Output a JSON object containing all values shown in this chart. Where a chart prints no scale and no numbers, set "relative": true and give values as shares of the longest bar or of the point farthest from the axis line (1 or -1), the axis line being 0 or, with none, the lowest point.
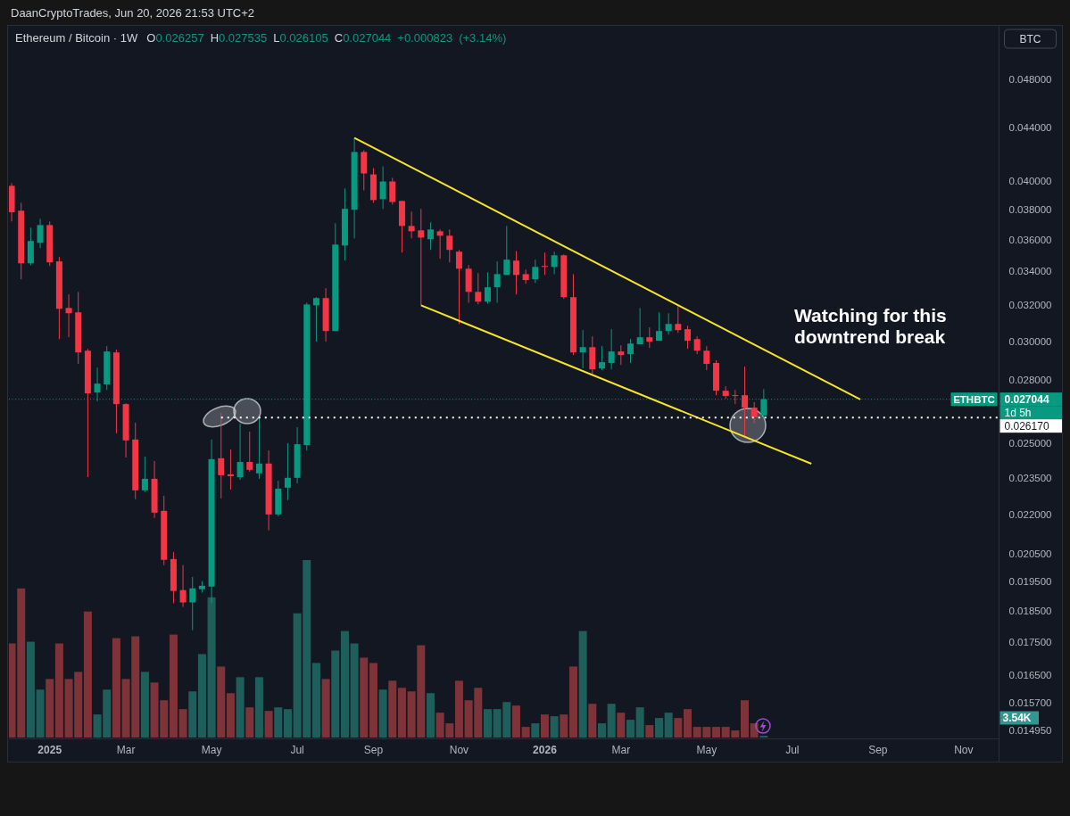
{
  "chart_data": [
    {
      "type": "candlestick",
      "title": "Ethereum / Bitcoin · 1W",
      "subtitle": "O0.026257 H0.027535 L0.026105 C0.027044 +0.000823 (+3.14%)",
      "ylabel": "BTC",
      "log": true,
      "xlim": [
        "2024-12-07",
        "2026-12-05"
      ],
      "xticks": [
        {
          "value": "2025-01-06",
          "label": "2025"
        },
        {
          "value": "2025-03-03",
          "label": "Mar"
        },
        {
          "value": "2025-05-05",
          "label": "May"
        },
        {
          "value": "2025-07-07",
          "label": "Jul"
        },
        {
          "value": "2025-09-01",
          "label": "Sep"
        },
        {
          "value": "2025-11-03",
          "label": "Nov"
        },
        {
          "value": "2026-01-05",
          "label": "2026"
        },
        {
          "value": "2026-03-02",
          "label": "Mar"
        },
        {
          "value": "2026-05-04",
          "label": "May"
        },
        {
          "value": "2026-07-06",
          "label": "Jul"
        },
        {
          "value": "2026-09-07",
          "label": "Sep"
        },
        {
          "value": "2026-11-09",
          "label": "Nov"
        }
      ],
      "ylim": [
        0.01475,
        0.0528
      ],
      "yticks": [
        {
          "value": 0.048,
          "label": "0.048000"
        },
        {
          "value": 0.044,
          "label": "0.044000"
        },
        {
          "value": 0.04,
          "label": "0.040000"
        },
        {
          "value": 0.038,
          "label": "0.038000"
        },
        {
          "value": 0.036,
          "label": "0.036000"
        },
        {
          "value": 0.034,
          "label": "0.034000"
        },
        {
          "value": 0.032,
          "label": "0.032000"
        },
        {
          "value": 0.03,
          "label": "0.030000"
        },
        {
          "value": 0.028,
          "label": "0.028000"
        },
        {
          "value": 0.025,
          "label": "0.025000"
        },
        {
          "value": 0.0235,
          "label": "0.023500"
        },
        {
          "value": 0.022,
          "label": "0.022000"
        },
        {
          "value": 0.0205,
          "label": "0.020500"
        },
        {
          "value": 0.0195,
          "label": "0.019500"
        },
        {
          "value": 0.0185,
          "label": "0.018500"
        },
        {
          "value": 0.0175,
          "label": "0.017500"
        },
        {
          "value": 0.0165,
          "label": "0.016500"
        },
        {
          "value": 0.0157,
          "label": "0.015700"
        },
        {
          "value": 0.01495,
          "label": "0.014950"
        }
      ],
      "series": [
        {
          "name": "ETHBTC",
          "type": "candlestick",
          "x": [
            "2024-12-09",
            "2024-12-16",
            "2024-12-23",
            "2024-12-30",
            "2025-01-06",
            "2025-01-13",
            "2025-01-20",
            "2025-01-27",
            "2025-02-03",
            "2025-02-10",
            "2025-02-17",
            "2025-02-24",
            "2025-03-03",
            "2025-03-10",
            "2025-03-17",
            "2025-03-24",
            "2025-03-31",
            "2025-04-07",
            "2025-04-14",
            "2025-04-21",
            "2025-04-28",
            "2025-05-05",
            "2025-05-12",
            "2025-05-19",
            "2025-05-26",
            "2025-06-02",
            "2025-06-09",
            "2025-06-16",
            "2025-06-23",
            "2025-06-30",
            "2025-07-07",
            "2025-07-14",
            "2025-07-21",
            "2025-07-28",
            "2025-08-04",
            "2025-08-11",
            "2025-08-18",
            "2025-08-25",
            "2025-09-01",
            "2025-09-08",
            "2025-09-15",
            "2025-09-22",
            "2025-09-29",
            "2025-10-06",
            "2025-10-13",
            "2025-10-20",
            "2025-10-27",
            "2025-11-03",
            "2025-11-10",
            "2025-11-17",
            "2025-11-24",
            "2025-12-01",
            "2025-12-08",
            "2025-12-15",
            "2025-12-22",
            "2025-12-29",
            "2026-01-05",
            "2026-01-12",
            "2026-01-19",
            "2026-01-26",
            "2026-02-02",
            "2026-02-09",
            "2026-02-16",
            "2026-02-23",
            "2026-03-02",
            "2026-03-09",
            "2026-03-16",
            "2026-03-23",
            "2026-03-30",
            "2026-04-06",
            "2026-04-13",
            "2026-04-20",
            "2026-04-27",
            "2026-05-04",
            "2026-05-11",
            "2026-05-18",
            "2026-05-25",
            "2026-06-01",
            "2026-06-08",
            "2026-06-15"
          ],
          "ohlc": [
            [
              0.03964,
              0.03983,
              0.03719,
              0.03781
            ],
            [
              0.03791,
              0.03845,
              0.03353,
              0.0345
            ],
            [
              0.0345,
              0.03678,
              0.03439,
              0.03591
            ],
            [
              0.03579,
              0.03737,
              0.03545,
              0.03695
            ],
            [
              0.03695,
              0.03719,
              0.03434,
              0.03456
            ],
            [
              0.03462,
              0.03489,
              0.03012,
              0.0318
            ],
            [
              0.03185,
              0.03263,
              0.03022,
              0.03155
            ],
            [
              0.0316,
              0.03278,
              0.02881,
              0.02941
            ],
            [
              0.0295,
              0.0296,
              0.02352,
              0.02733
            ],
            [
              0.02737,
              0.02862,
              0.02694,
              0.02781
            ],
            [
              0.02777,
              0.02974,
              0.0275,
              0.02946
            ],
            [
              0.02941,
              0.02955,
              0.02544,
              0.02681
            ],
            [
              0.02681,
              0.02685,
              0.02436,
              0.02512
            ],
            [
              0.02516,
              0.02593,
              0.02261,
              0.02297
            ],
            [
              0.02297,
              0.0244,
              0.0229,
              0.02345
            ],
            [
              0.02345,
              0.02421,
              0.02186,
              0.02207
            ],
            [
              0.02214,
              0.02275,
              0.02009,
              0.02028
            ],
            [
              0.02031,
              0.02057,
              0.01876,
              0.01918
            ],
            [
              0.01921,
              0.02009,
              0.01864,
              0.01879
            ],
            [
              0.01879,
              0.01967,
              0.01788,
              0.01927
            ],
            [
              0.01924,
              0.01952,
              0.01912,
              0.01936
            ],
            [
              0.01933,
              0.02516,
              0.01876,
              0.02429
            ],
            [
              0.02433,
              0.02639,
              0.02264,
              0.0236
            ],
            [
              0.02364,
              0.02471,
              0.023,
              0.02356
            ],
            [
              0.02352,
              0.02589,
              0.02341,
              0.02417
            ],
            [
              0.02417,
              0.02552,
              0.02375,
              0.02383
            ],
            [
              0.02368,
              0.02618,
              0.02345,
              0.0241
            ],
            [
              0.0241,
              0.02467,
              0.02138,
              0.022
            ],
            [
              0.022,
              0.02337,
              0.02193,
              0.02304
            ],
            [
              0.02308,
              0.025,
              0.02257,
              0.02349
            ],
            [
              0.02349,
              0.02572,
              0.02326,
              0.02495
            ],
            [
              0.02491,
              0.03215,
              0.02467,
              0.03205
            ],
            [
              0.032,
              0.03247,
              0.02998,
              0.03242
            ],
            [
              0.03242,
              0.033,
              0.02998,
              0.03056
            ],
            [
              0.03056,
              0.03707,
              0.03056,
              0.03568
            ],
            [
              0.03562,
              0.03945,
              0.03467,
              0.03804
            ],
            [
              0.03798,
              0.0432,
              0.03608,
              0.04212
            ],
            [
              0.04212,
              0.04225,
              0.03932,
              0.04053
            ],
            [
              0.04046,
              0.04092,
              0.03845,
              0.03864
            ],
            [
              0.0387,
              0.04105,
              0.03803,
              0.03995
            ],
            [
              0.03995,
              0.04021,
              0.03833,
              0.03851
            ],
            [
              0.03858,
              0.03858,
              0.03517,
              0.03689
            ],
            [
              0.03689,
              0.03785,
              0.03608,
              0.03654
            ],
            [
              0.0366,
              0.03803,
              0.032,
              0.03613
            ],
            [
              0.03602,
              0.03713,
              0.03534,
              0.03666
            ],
            [
              0.03654,
              0.03666,
              0.03478,
              0.03625
            ],
            [
              0.03625,
              0.03666,
              0.03456,
              0.03534
            ],
            [
              0.03523,
              0.03534,
              0.03095,
              0.03417
            ],
            [
              0.03417,
              0.03439,
              0.03215,
              0.03278
            ],
            [
              0.03278,
              0.0339,
              0.03205,
              0.03221
            ],
            [
              0.03221,
              0.03395,
              0.0321,
              0.03305
            ],
            [
              0.03305,
              0.03462,
              0.03215,
              0.03384
            ],
            [
              0.03379,
              0.03689,
              0.03379,
              0.03473
            ],
            [
              0.03467,
              0.03528,
              0.03263,
              0.03379
            ],
            [
              0.03384,
              0.03412,
              0.03326,
              0.03348
            ],
            [
              0.03353,
              0.03473,
              0.03331,
              0.03428
            ],
            [
              0.03434,
              0.03517,
              0.03379,
              0.03428
            ],
            [
              0.03428,
              0.03523,
              0.03384,
              0.035
            ],
            [
              0.035,
              0.03506,
              0.03237,
              0.03247
            ],
            [
              0.03247,
              0.03384,
              0.02927,
              0.02941
            ],
            [
              0.02941,
              0.03061,
              0.02858,
              0.02969
            ],
            [
              0.02969,
              0.03027,
              0.02831,
              0.02853
            ],
            [
              0.02858,
              0.02974,
              0.02849,
              0.0289
            ],
            [
              0.02886,
              0.03066,
              0.02853,
              0.02946
            ],
            [
              0.02946,
              0.02979,
              0.02876,
              0.02927
            ],
            [
              0.02932,
              0.03012,
              0.02886,
              0.02988
            ],
            [
              0.02984,
              0.03185,
              0.02984,
              0.03022
            ],
            [
              0.03022,
              0.03076,
              0.02965,
              0.02998
            ],
            [
              0.03003,
              0.0316,
              0.03003,
              0.03056
            ],
            [
              0.03056,
              0.03155,
              0.03036,
              0.03095
            ],
            [
              0.03095,
              0.03195,
              0.03046,
              0.03061
            ],
            [
              0.03066,
              0.03085,
              0.0296,
              0.03003
            ],
            [
              0.03012,
              0.03027,
              0.02932,
              0.0295
            ],
            [
              0.0295,
              0.02974,
              0.02849,
              0.02881
            ],
            [
              0.02886,
              0.029,
              0.02724,
              0.02746
            ],
            [
              0.02746,
              0.02768,
              0.02707,
              0.0272
            ],
            [
              0.02724,
              0.0275,
              0.02681,
              0.0272
            ],
            [
              0.02724,
              0.02867,
              0.02528,
              0.02664
            ],
            [
              0.02664,
              0.0269,
              0.02589,
              0.02618
            ],
            [
              0.026257,
              0.027535,
              0.026105,
              0.027044
            ]
          ],
          "colors": [
            "#f23645",
            "#f23645",
            "#089981",
            "#089981",
            "#f23645",
            "#f23645",
            "#f23645",
            "#f23645",
            "#f23645",
            "#089981",
            "#089981",
            "#f23645",
            "#f23645",
            "#f23645",
            "#089981",
            "#f23645",
            "#f23645",
            "#f23645",
            "#f23645",
            "#089981",
            "#089981",
            "#089981",
            "#f23645",
            "#f23645",
            "#089981",
            "#f23645",
            "#089981",
            "#f23645",
            "#089981",
            "#089981",
            "#089981",
            "#089981",
            "#089981",
            "#f23645",
            "#089981",
            "#089981",
            "#089981",
            "#f23645",
            "#f23645",
            "#089981",
            "#f23645",
            "#f23645",
            "#f23645",
            "#f23645",
            "#089981",
            "#f23645",
            "#f23645",
            "#f23645",
            "#f23645",
            "#f23645",
            "#089981",
            "#089981",
            "#089981",
            "#f23645",
            "#f23645",
            "#089981",
            "#f23645",
            "#089981",
            "#f23645",
            "#f23645",
            "#089981",
            "#f23645",
            "#089981",
            "#089981",
            "#f23645",
            "#089981",
            "#089981",
            "#f23645",
            "#089981",
            "#089981",
            "#f23645",
            "#f23645",
            "#f23645",
            "#f23645",
            "#f23645",
            "#f23645",
            "#f23645",
            "#f23645",
            "#f23645",
            "#089981"
          ]
        },
        {
          "type": "line",
          "color": "#f7e52a",
          "x": [
            "2025-08-18",
            "2026-08-25"
          ],
          "values": [
            0.0432,
            0.02703
          ]
        },
        {
          "type": "line",
          "color": "#f7e52a",
          "x": [
            "2025-10-06",
            "2026-07-20"
          ],
          "values": [
            0.032,
            0.02409
          ]
        },
        {
          "type": "line",
          "color": "#ffffff",
          "line_style": "dotted",
          "x": [
            "2025-05-12",
            "2026-12-05"
          ],
          "values": [
            0.02617,
            0.02617
          ],
          "value_labels": [
            null,
            "0.026170"
          ]
        }
      ],
      "ref_lines": [
        {
          "axis": "y",
          "value": 0.027044,
          "label": "0.027044",
          "color": "#089981",
          "line_style": "dotted"
        }
      ],
      "annotations": [
        "DaanCryptoTrades, Jun 20, 2026 21:53 UTC+2",
        "Watching for this downtrend break",
        "1d 5h"
      ]
    },
    {
      "type": "bar",
      "relative": true,
      "xlim": [
        "2024-12-07",
        "2026-12-05"
      ],
      "x": [
        "2024-12-09",
        "2024-12-16",
        "2024-12-23",
        "2024-12-30",
        "2025-01-06",
        "2025-01-13",
        "2025-01-20",
        "2025-01-27",
        "2025-02-03",
        "2025-02-10",
        "2025-02-17",
        "2025-02-24",
        "2025-03-03",
        "2025-03-10",
        "2025-03-17",
        "2025-03-24",
        "2025-03-31",
        "2025-04-07",
        "2025-04-14",
        "2025-04-21",
        "2025-04-28",
        "2025-05-05",
        "2025-05-12",
        "2025-05-19",
        "2025-05-26",
        "2025-06-02",
        "2025-06-09",
        "2025-06-16",
        "2025-06-23",
        "2025-06-30",
        "2025-07-07",
        "2025-07-14",
        "2025-07-21",
        "2025-07-28",
        "2025-08-04",
        "2025-08-11",
        "2025-08-18",
        "2025-08-25",
        "2025-09-01",
        "2025-09-08",
        "2025-09-15",
        "2025-09-22",
        "2025-09-29",
        "2025-10-06",
        "2025-10-13",
        "2025-10-20",
        "2025-10-27",
        "2025-11-03",
        "2025-11-10",
        "2025-11-17",
        "2025-11-24",
        "2025-12-01",
        "2025-12-08",
        "2025-12-15",
        "2025-12-22",
        "2025-12-29",
        "2026-01-05",
        "2026-01-12",
        "2026-01-19",
        "2026-01-26",
        "2026-02-02",
        "2026-02-09",
        "2026-02-16",
        "2026-02-23",
        "2026-03-02",
        "2026-03-09",
        "2026-03-16",
        "2026-03-23",
        "2026-03-30",
        "2026-04-06",
        "2026-04-13",
        "2026-04-20",
        "2026-04-27",
        "2026-05-04",
        "2026-05-11",
        "2026-05-18",
        "2026-05-25",
        "2026-06-01",
        "2026-06-08",
        "2026-06-15"
      ],
      "values": [
        0.53,
        0.84,
        0.54,
        0.27,
        0.33,
        0.53,
        0.33,
        0.37,
        0.71,
        0.13,
        0.27,
        0.56,
        0.33,
        0.57,
        0.37,
        0.31,
        0.21,
        0.58,
        0.16,
        0.26,
        0.47,
        0.79,
        0.4,
        0.25,
        0.34,
        0.17,
        0.34,
        0.15,
        0.17,
        0.16,
        0.7,
        1,
        0.42,
        0.33,
        0.49,
        0.6,
        0.53,
        0.45,
        0.42,
        0.27,
        0.32,
        0.28,
        0.26,
        0.52,
        0.25,
        0.14,
        0.08,
        0.32,
        0.21,
        0.28,
        0.16,
        0.16,
        0.2,
        0.18,
        0.06,
        0.08,
        0.13,
        0.12,
        0.13,
        0.4,
        0.6,
        0.19,
        0.08,
        0.19,
        0.14,
        0.1,
        0.17,
        0.07,
        0.11,
        0.14,
        0.11,
        0.16,
        0.06,
        0.06,
        0.06,
        0.06,
        0.04,
        0.21,
        0.08,
        0.01
      ],
      "colors": [
        "#7d3338",
        "#7d3338",
        "#1f5f5b",
        "#1f5f5b",
        "#7d3338",
        "#7d3338",
        "#7d3338",
        "#7d3338",
        "#7d3338",
        "#1f5f5b",
        "#1f5f5b",
        "#7d3338",
        "#7d3338",
        "#7d3338",
        "#1f5f5b",
        "#7d3338",
        "#7d3338",
        "#7d3338",
        "#7d3338",
        "#1f5f5b",
        "#1f5f5b",
        "#1f5f5b",
        "#7d3338",
        "#7d3338",
        "#1f5f5b",
        "#7d3338",
        "#1f5f5b",
        "#7d3338",
        "#1f5f5b",
        "#1f5f5b",
        "#1f5f5b",
        "#1f5f5b",
        "#1f5f5b",
        "#7d3338",
        "#1f5f5b",
        "#1f5f5b",
        "#1f5f5b",
        "#7d3338",
        "#7d3338",
        "#1f5f5b",
        "#7d3338",
        "#7d3338",
        "#7d3338",
        "#7d3338",
        "#1f5f5b",
        "#7d3338",
        "#7d3338",
        "#7d3338",
        "#7d3338",
        "#7d3338",
        "#1f5f5b",
        "#1f5f5b",
        "#1f5f5b",
        "#7d3338",
        "#7d3338",
        "#1f5f5b",
        "#7d3338",
        "#1f5f5b",
        "#7d3338",
        "#7d3338",
        "#1f5f5b",
        "#7d3338",
        "#1f5f5b",
        "#1f5f5b",
        "#7d3338",
        "#1f5f5b",
        "#1f5f5b",
        "#7d3338",
        "#1f5f5b",
        "#1f5f5b",
        "#7d3338",
        "#7d3338",
        "#7d3338",
        "#7d3338",
        "#7d3338",
        "#7d3338",
        "#7d3338",
        "#7d3338",
        "#7d3338",
        "#1f5f5b"
      ],
      "annotations": [
        "3.54K"
      ]
    }
  ]
}
